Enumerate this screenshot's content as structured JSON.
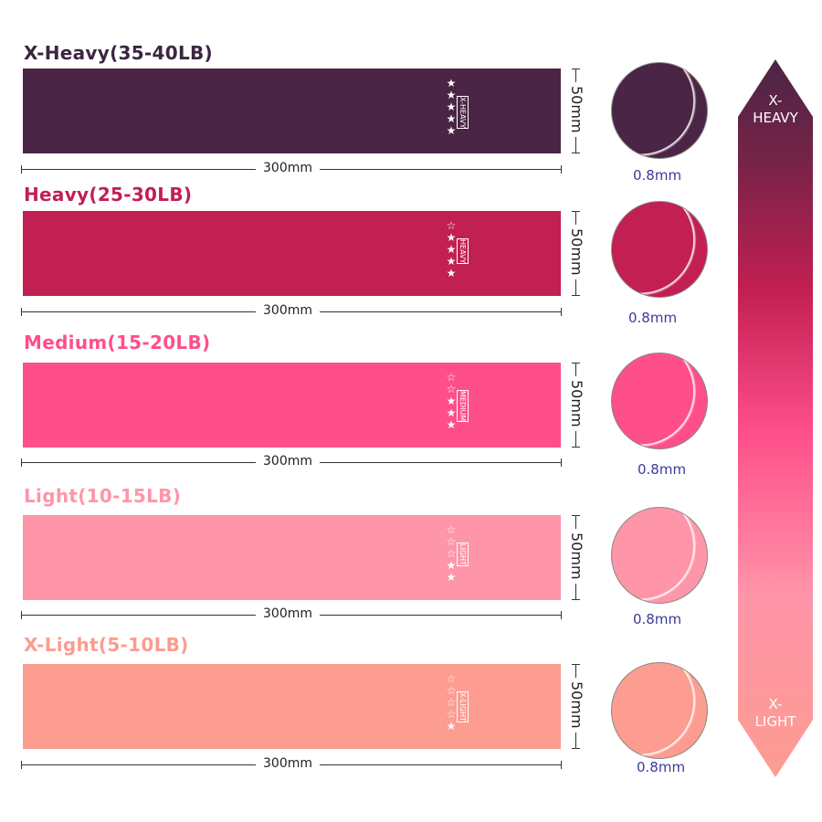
{
  "bands": [
    {
      "title": "X-Heavy(35-40LB)",
      "level": "X-HEAVY",
      "stars_filled": 5,
      "color": "#4a2545",
      "title_color": "#3b2640",
      "length": "300mm",
      "width": "50mm",
      "thickness": "0.8mm"
    },
    {
      "title": "Heavy(25-30LB)",
      "level": "HEAVY",
      "stars_filled": 4,
      "color": "#c21f52",
      "title_color": "#c21f52",
      "length": "300mm",
      "width": "50mm",
      "thickness": "0.8mm"
    },
    {
      "title": "Medium(15-20LB)",
      "level": "MEDIUM",
      "stars_filled": 3,
      "color": "#ff4f8b",
      "title_color": "#ff4f8b",
      "length": "300mm",
      "width": "50mm",
      "thickness": "0.8mm"
    },
    {
      "title": "Light(10-15LB)",
      "level": "LIGHT",
      "stars_filled": 2,
      "color": "#ff95a9",
      "title_color": "#ff95a9",
      "length": "300mm",
      "width": "50mm",
      "thickness": "0.8mm"
    },
    {
      "title": "X-Light(5-10LB)",
      "level": "X-LIGHT",
      "stars_filled": 1,
      "color": "#fd9c90",
      "title_color": "#fb9c8f",
      "length": "300mm",
      "width": "50mm",
      "thickness": "0.8mm"
    }
  ],
  "stars_total": 5,
  "scale": {
    "top_label": "X-\nHEAVY",
    "bottom_label": "X-\nLIGHT"
  }
}
